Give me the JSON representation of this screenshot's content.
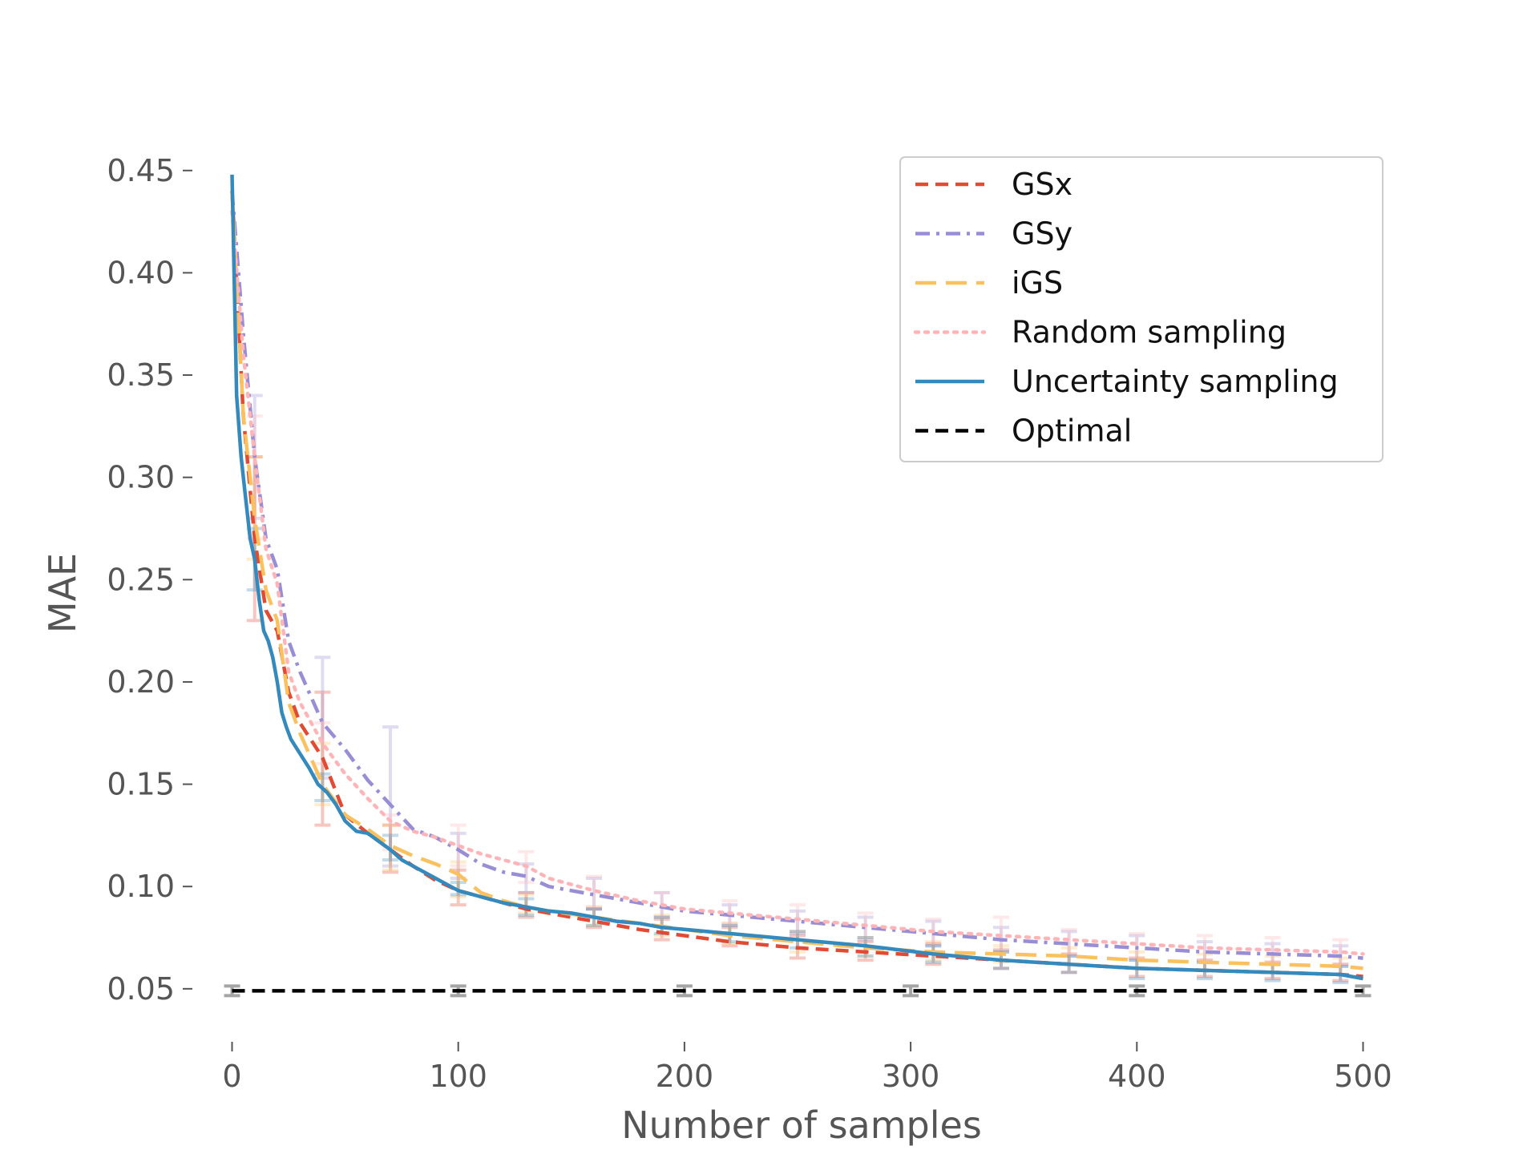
{
  "chart_data": {
    "type": "line",
    "title": "",
    "xlabel": "Number of samples",
    "ylabel": "MAE",
    "xlim": [
      -14,
      514
    ],
    "ylim": [
      0.028,
      0.455
    ],
    "x_ticks": [
      0,
      100,
      200,
      300,
      400,
      500
    ],
    "x_tick_labels": [
      "0",
      "100",
      "200",
      "300",
      "400",
      "500"
    ],
    "y_ticks": [
      0.05,
      0.1,
      0.15,
      0.2,
      0.25,
      0.3,
      0.35,
      0.4,
      0.45
    ],
    "y_tick_labels": [
      "0.05",
      "0.10",
      "0.15",
      "0.20",
      "0.25",
      "0.30",
      "0.35",
      "0.40",
      "0.45"
    ],
    "grid": false,
    "legend_position": "top-right",
    "series": [
      {
        "name": "GSx",
        "color": "#E24A33",
        "style": "dashed",
        "x": [
          0,
          5,
          10,
          15,
          20,
          25,
          30,
          40,
          50,
          60,
          70,
          80,
          90,
          100,
          110,
          120,
          130,
          140,
          160,
          180,
          200,
          220,
          250,
          280,
          310,
          340,
          370,
          400,
          430,
          460,
          490,
          500
        ],
        "y": [
          0.44,
          0.33,
          0.27,
          0.235,
          0.225,
          0.195,
          0.18,
          0.163,
          0.135,
          0.126,
          0.118,
          0.11,
          0.103,
          0.098,
          0.095,
          0.092,
          0.089,
          0.087,
          0.083,
          0.079,
          0.076,
          0.073,
          0.07,
          0.068,
          0.066,
          0.064,
          0.062,
          0.06,
          0.059,
          0.058,
          0.057,
          0.056
        ],
        "error_x": [
          10,
          40,
          70,
          100,
          130,
          160,
          190,
          220,
          250,
          280,
          310,
          340,
          370,
          400,
          430,
          460,
          490
        ],
        "error_low": [
          0.23,
          0.13,
          0.107,
          0.091,
          0.085,
          0.08,
          0.074,
          0.071,
          0.065,
          0.064,
          0.062,
          0.06,
          0.058,
          0.056,
          0.056,
          0.055,
          0.054
        ],
        "error_high": [
          0.31,
          0.195,
          0.13,
          0.108,
          0.097,
          0.089,
          0.084,
          0.08,
          0.076,
          0.073,
          0.072,
          0.069,
          0.067,
          0.065,
          0.064,
          0.063,
          0.062
        ]
      },
      {
        "name": "GSy",
        "color": "#988ED5",
        "style": "dashdot",
        "x": [
          0,
          5,
          10,
          15,
          20,
          25,
          30,
          40,
          50,
          60,
          70,
          80,
          90,
          100,
          110,
          120,
          130,
          140,
          160,
          180,
          200,
          220,
          250,
          280,
          310,
          340,
          370,
          400,
          430,
          460,
          490,
          500
        ],
        "y": [
          0.44,
          0.37,
          0.31,
          0.27,
          0.255,
          0.22,
          0.205,
          0.18,
          0.167,
          0.152,
          0.14,
          0.128,
          0.124,
          0.118,
          0.111,
          0.107,
          0.105,
          0.1,
          0.096,
          0.092,
          0.088,
          0.086,
          0.083,
          0.08,
          0.077,
          0.074,
          0.072,
          0.07,
          0.068,
          0.067,
          0.066,
          0.065
        ],
        "error_x": [
          10,
          40,
          70,
          100,
          130,
          160,
          190,
          220,
          250,
          280,
          310,
          340,
          370,
          400,
          430,
          460,
          490
        ],
        "error_low": [
          0.28,
          0.153,
          0.11,
          0.104,
          0.097,
          0.089,
          0.085,
          0.081,
          0.077,
          0.074,
          0.071,
          0.068,
          0.066,
          0.064,
          0.063,
          0.062,
          0.061
        ],
        "error_high": [
          0.34,
          0.212,
          0.178,
          0.126,
          0.111,
          0.104,
          0.097,
          0.091,
          0.088,
          0.085,
          0.083,
          0.08,
          0.078,
          0.076,
          0.073,
          0.072,
          0.071
        ]
      },
      {
        "name": "iGS",
        "color": "#FBC15E",
        "style": "longdash",
        "x": [
          0,
          5,
          10,
          15,
          20,
          25,
          30,
          40,
          50,
          60,
          70,
          80,
          90,
          100,
          110,
          120,
          130,
          140,
          160,
          180,
          200,
          220,
          250,
          280,
          310,
          340,
          370,
          400,
          430,
          460,
          490,
          500
        ],
        "y": [
          0.44,
          0.33,
          0.28,
          0.245,
          0.23,
          0.19,
          0.175,
          0.15,
          0.135,
          0.128,
          0.12,
          0.115,
          0.111,
          0.106,
          0.097,
          0.093,
          0.09,
          0.088,
          0.085,
          0.082,
          0.079,
          0.076,
          0.073,
          0.07,
          0.068,
          0.067,
          0.066,
          0.064,
          0.063,
          0.062,
          0.061,
          0.06
        ],
        "error_x": [
          10,
          40,
          70,
          100,
          130,
          160,
          190,
          220,
          250,
          280,
          310,
          340,
          370,
          400,
          430,
          460,
          490
        ],
        "error_low": [
          0.26,
          0.14,
          0.108,
          0.095,
          0.087,
          0.081,
          0.076,
          0.072,
          0.068,
          0.066,
          0.064,
          0.063,
          0.062,
          0.06,
          0.059,
          0.058,
          0.057
        ],
        "error_high": [
          0.31,
          0.17,
          0.13,
          0.112,
          0.096,
          0.09,
          0.086,
          0.082,
          0.078,
          0.075,
          0.073,
          0.071,
          0.07,
          0.068,
          0.067,
          0.066,
          0.065
        ]
      },
      {
        "name": "Random sampling",
        "color": "#FFB5B8",
        "style": "dotted",
        "x": [
          0,
          5,
          10,
          15,
          20,
          25,
          30,
          40,
          50,
          60,
          70,
          80,
          90,
          100,
          110,
          120,
          130,
          140,
          160,
          180,
          200,
          220,
          250,
          280,
          310,
          340,
          370,
          400,
          430,
          460,
          490,
          500
        ],
        "y": [
          0.43,
          0.36,
          0.31,
          0.265,
          0.248,
          0.205,
          0.19,
          0.17,
          0.155,
          0.143,
          0.132,
          0.127,
          0.124,
          0.12,
          0.116,
          0.113,
          0.11,
          0.104,
          0.098,
          0.093,
          0.089,
          0.087,
          0.084,
          0.081,
          0.078,
          0.076,
          0.074,
          0.072,
          0.07,
          0.069,
          0.068,
          0.067
        ],
        "error_x": [
          10,
          40,
          70,
          100,
          130,
          160,
          190,
          220,
          250,
          280,
          310,
          340,
          370,
          400,
          430,
          460,
          490
        ],
        "error_low": [
          0.27,
          0.16,
          0.118,
          0.11,
          0.102,
          0.09,
          0.085,
          0.082,
          0.078,
          0.075,
          0.072,
          0.069,
          0.067,
          0.065,
          0.064,
          0.063,
          0.062
        ],
        "error_high": [
          0.33,
          0.18,
          0.135,
          0.13,
          0.117,
          0.105,
          0.097,
          0.093,
          0.091,
          0.087,
          0.084,
          0.085,
          0.079,
          0.077,
          0.076,
          0.075,
          0.074
        ]
      },
      {
        "name": "Uncertainty sampling",
        "color": "#348ABD",
        "style": "solid",
        "x": [
          0,
          2,
          4,
          6,
          8,
          10,
          12,
          14,
          16,
          18,
          20,
          22,
          24,
          26,
          30,
          34,
          38,
          42,
          46,
          50,
          55,
          60,
          65,
          70,
          75,
          80,
          90,
          100,
          110,
          120,
          130,
          140,
          150,
          160,
          170,
          180,
          190,
          200,
          220,
          250,
          280,
          310,
          340,
          370,
          400,
          430,
          460,
          490,
          500
        ],
        "y": [
          0.448,
          0.34,
          0.31,
          0.29,
          0.27,
          0.26,
          0.24,
          0.225,
          0.22,
          0.212,
          0.2,
          0.185,
          0.178,
          0.172,
          0.165,
          0.158,
          0.15,
          0.146,
          0.14,
          0.132,
          0.127,
          0.126,
          0.122,
          0.118,
          0.113,
          0.11,
          0.104,
          0.098,
          0.095,
          0.092,
          0.09,
          0.088,
          0.087,
          0.085,
          0.083,
          0.082,
          0.08,
          0.079,
          0.077,
          0.074,
          0.071,
          0.067,
          0.064,
          0.062,
          0.06,
          0.059,
          0.058,
          0.057,
          0.055
        ],
        "error_x": [
          10,
          40,
          70,
          100,
          130,
          160,
          190,
          220,
          250,
          280,
          310,
          340,
          370,
          400,
          430,
          460,
          490
        ],
        "error_low": [
          0.245,
          0.142,
          0.113,
          0.096,
          0.086,
          0.081,
          0.077,
          0.073,
          0.07,
          0.066,
          0.063,
          0.06,
          0.058,
          0.055,
          0.055,
          0.054,
          0.053
        ],
        "error_high": [
          0.275,
          0.155,
          0.125,
          0.102,
          0.094,
          0.089,
          0.085,
          0.081,
          0.078,
          0.075,
          0.071,
          0.068,
          0.066,
          0.064,
          0.063,
          0.062,
          0.061
        ]
      },
      {
        "name": "Optimal",
        "color": "#000000",
        "style": "dashed",
        "x": [
          0,
          500
        ],
        "y": [
          0.049,
          0.049
        ],
        "marker_x": [
          0,
          100,
          200,
          300,
          400,
          500
        ]
      }
    ]
  }
}
